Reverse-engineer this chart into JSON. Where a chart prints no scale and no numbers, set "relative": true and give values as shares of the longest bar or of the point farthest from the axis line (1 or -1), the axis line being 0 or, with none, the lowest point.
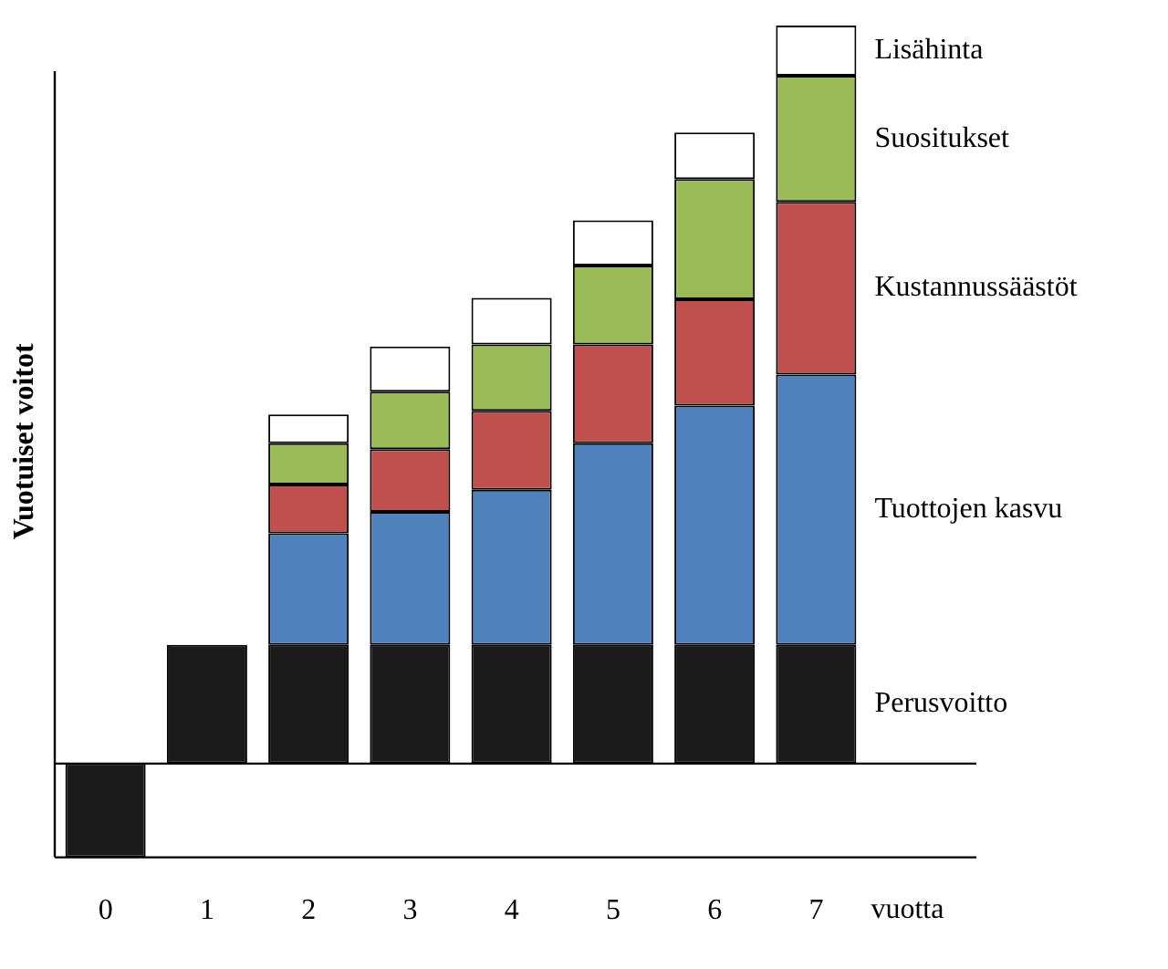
{
  "chart_data": {
    "type": "bar",
    "stacked": true,
    "relative": true,
    "ylabel": "Vuotuiset voitot",
    "xlabel": "vuotta",
    "categories": [
      "0",
      "1",
      "2",
      "3",
      "4",
      "5",
      "6",
      "7"
    ],
    "series": [
      {
        "name": "Perusvoitto",
        "color": "#1a1a1a",
        "values": [
          -0.127,
          0.161,
          0.161,
          0.161,
          0.161,
          0.161,
          0.161,
          0.161
        ]
      },
      {
        "name": "Tuottojen kasvu",
        "color": "#4f81bd",
        "values": [
          null,
          null,
          0.151,
          0.18,
          0.21,
          0.273,
          0.324,
          0.366
        ]
      },
      {
        "name": "Kustannussäästöt",
        "color": "#c0504d",
        "values": [
          null,
          null,
          0.066,
          0.085,
          0.107,
          0.134,
          0.144,
          0.234
        ]
      },
      {
        "name": "Suositukset",
        "color": "#9bbb59",
        "values": [
          null,
          null,
          0.056,
          0.078,
          0.09,
          0.107,
          0.163,
          0.171
        ]
      },
      {
        "name": "Lisähinta",
        "color": "#ffffff",
        "values": [
          null,
          null,
          0.039,
          0.061,
          0.063,
          0.061,
          0.063,
          0.068
        ]
      }
    ]
  }
}
